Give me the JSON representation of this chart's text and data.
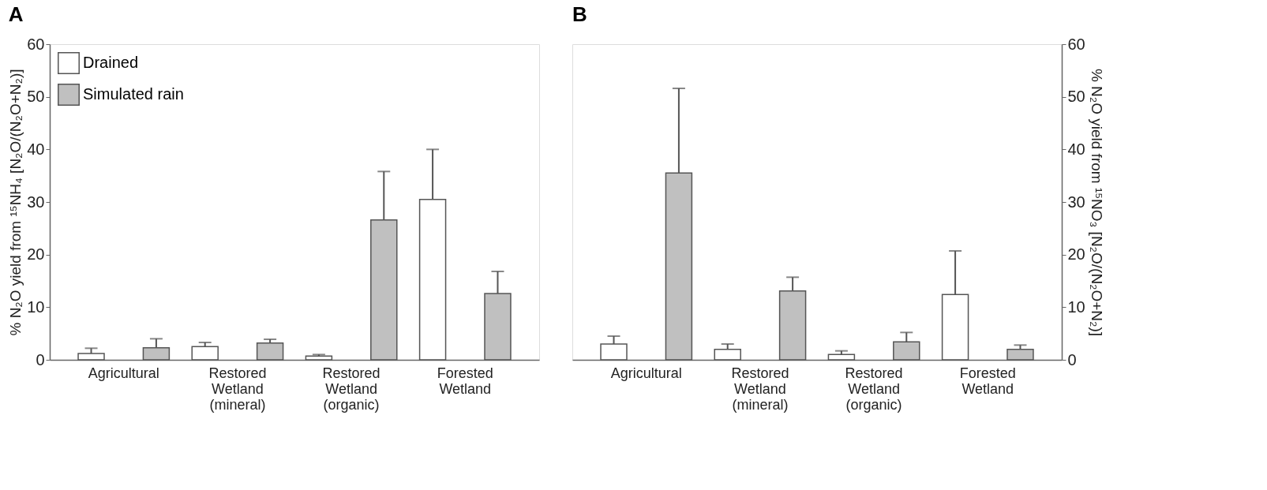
{
  "chart_data": [
    {
      "type": "bar",
      "title": "A",
      "ylabel": "% N₂O yield from ¹⁵NH₄ [N₂O/(N₂O+N₂)]",
      "categories": [
        "Agricultural",
        "Restored Wetland (mineral)",
        "Restored Wetland (organic)",
        "Forested Wetland"
      ],
      "series": [
        {
          "name": "Drained",
          "color": "#ffffff",
          "values": [
            1.2,
            2.5,
            0.7,
            30.5
          ],
          "errors": [
            [
              1.2,
              2.2
            ],
            [
              2.5,
              3.3
            ],
            [
              0.7,
              1.0
            ],
            [
              30.5,
              40.0
            ]
          ]
        },
        {
          "name": "Simulated rain",
          "color": "#c0c0c0",
          "values": [
            2.3,
            3.2,
            26.6,
            12.6
          ],
          "errors": [
            [
              2.3,
              4.0
            ],
            [
              3.2,
              3.9
            ],
            [
              26.6,
              35.8
            ],
            [
              12.6,
              16.8
            ]
          ]
        }
      ],
      "ylim": [
        0,
        60
      ],
      "yticks": [
        0,
        10,
        20,
        30,
        40,
        50,
        60
      ],
      "grid": false,
      "legend": "top left"
    },
    {
      "type": "bar",
      "title": "B",
      "ylabel": "% N₂O yield from ¹⁵NO₃ [N₂O/(N₂O+N₂)]",
      "categories": [
        "Agricultural",
        "Restored Wetland (mineral)",
        "Restored Wetland (organic)",
        "Forested Wetland"
      ],
      "series": [
        {
          "color": "#ffffff",
          "values": [
            3.0,
            2.0,
            1.0,
            12.4
          ],
          "errors": [
            [
              3.0,
              4.5
            ],
            [
              2.0,
              3.0
            ],
            [
              1.0,
              1.7
            ],
            [
              12.4,
              20.7
            ]
          ]
        },
        {
          "color": "#c0c0c0",
          "values": [
            35.5,
            13.1,
            3.4,
            2.0
          ],
          "errors": [
            [
              35.5,
              51.6
            ],
            [
              13.1,
              15.7
            ],
            [
              3.4,
              5.2
            ],
            [
              2.0,
              2.8
            ]
          ]
        }
      ],
      "ylim": [
        0,
        60
      ],
      "yticks": [
        0,
        10,
        20,
        30,
        40,
        50,
        60
      ],
      "grid": false,
      "legend": false
    }
  ]
}
